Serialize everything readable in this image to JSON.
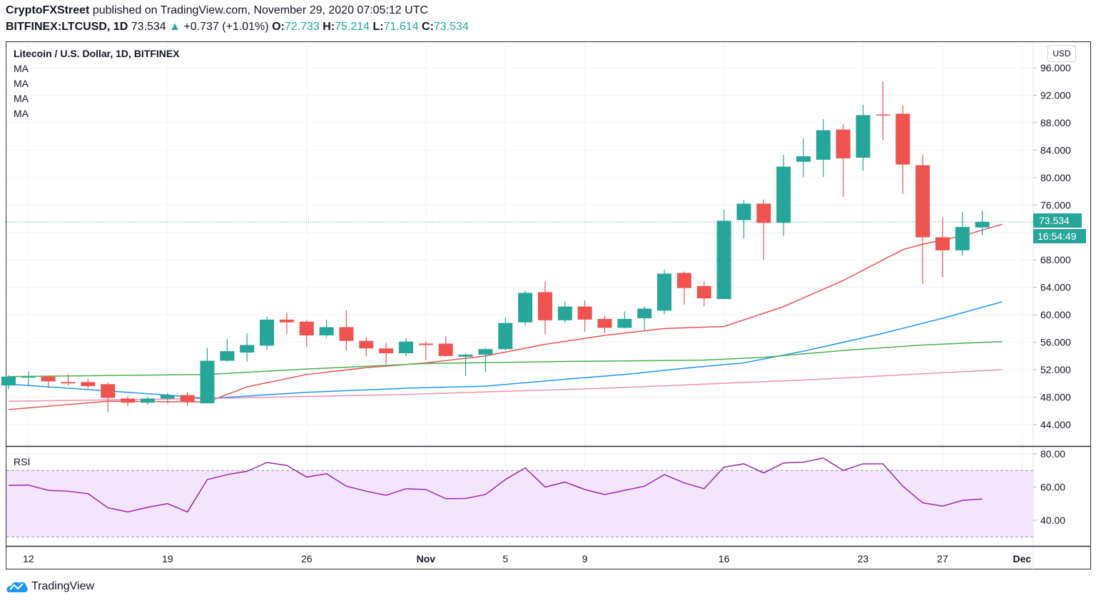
{
  "header": {
    "publisher": "CryptoFXStreet",
    "published_text": "published on TradingView.com, November 29, 2020 07:05:12 UTC",
    "symbol": "BITFINEX:LTCUSD, 1D",
    "last": "73.534",
    "change": "+0.737 (+1.01%)",
    "change_direction_icon": "triangle-up-icon",
    "open_label": "O:",
    "open": "72.733",
    "high_label": "H:",
    "high": "75.214",
    "low_label": "L:",
    "low": "71.614",
    "close_label": "C:",
    "close": "73.534"
  },
  "legend": {
    "title": "Litecoin / U.S. Dollar, 1D, BITFINEX",
    "indicators": [
      "MA",
      "MA",
      "MA",
      "MA"
    ]
  },
  "price_axis": {
    "currency_badge": "USD"
  },
  "last_price_tag": "73.534",
  "countdown_tag": "16:54:49",
  "rsi_label": "RSI",
  "footer": {
    "brand": "TradingView"
  },
  "colors": {
    "up": "#26a69a",
    "down": "#ef5350",
    "ma_fast": "#ef5350",
    "ma_mid": "#2196f3",
    "ma_slow": "#4caf50",
    "ma_long": "#f48fb1",
    "rsi_line": "#9c27b0",
    "rsi_band": "#f3e5fc"
  },
  "chart_data": [
    {
      "type": "candlestick",
      "title": "Litecoin / U.S. Dollar, 1D, BITFINEX",
      "ylabel": "USD",
      "ylim": [
        42,
        98
      ],
      "yticks": [
        44,
        48,
        52,
        56,
        60,
        64,
        68,
        72,
        76,
        80,
        84,
        88,
        92,
        96
      ],
      "ytick_labels": [
        "44.000",
        "48.000",
        "52.000",
        "56.000",
        "60.000",
        "64.000",
        "68.000",
        "72.000",
        "76.000",
        "80.000",
        "84.000",
        "88.000",
        "92.000",
        "96.000"
      ],
      "xtick_labels": [
        {
          "label": "12",
          "day": 1
        },
        {
          "label": "19",
          "day": 8
        },
        {
          "label": "26",
          "day": 15
        },
        {
          "label": "Nov",
          "day": 21
        },
        {
          "label": "5",
          "day": 25
        },
        {
          "label": "9",
          "day": 29
        },
        {
          "label": "16",
          "day": 36
        },
        {
          "label": "23",
          "day": 43
        },
        {
          "label": "27",
          "day": 47
        },
        {
          "label": "Dec",
          "day": 51
        }
      ],
      "candles": [
        {
          "date": "Oct 11",
          "o": 49.7,
          "h": 51.2,
          "l": 49.1,
          "c": 51.0
        },
        {
          "date": "Oct 12",
          "o": 50.9,
          "h": 51.8,
          "l": 49.6,
          "c": 51.0
        },
        {
          "date": "Oct 13",
          "o": 51.0,
          "h": 51.2,
          "l": 49.4,
          "c": 50.3
        },
        {
          "date": "Oct 14",
          "o": 50.2,
          "h": 51.3,
          "l": 49.7,
          "c": 50.0
        },
        {
          "date": "Oct 15",
          "o": 50.2,
          "h": 50.7,
          "l": 49.3,
          "c": 49.6
        },
        {
          "date": "Oct 16",
          "o": 49.9,
          "h": 50.1,
          "l": 45.8,
          "c": 47.9
        },
        {
          "date": "Oct 17",
          "o": 47.8,
          "h": 48.1,
          "l": 46.7,
          "c": 47.2
        },
        {
          "date": "Oct 18",
          "o": 47.2,
          "h": 48.0,
          "l": 46.9,
          "c": 47.8
        },
        {
          "date": "Oct 19",
          "o": 47.8,
          "h": 48.6,
          "l": 47.1,
          "c": 48.3
        },
        {
          "date": "Oct 20",
          "o": 48.3,
          "h": 48.7,
          "l": 46.7,
          "c": 47.3
        },
        {
          "date": "Oct 21",
          "o": 47.1,
          "h": 55.2,
          "l": 47.1,
          "c": 53.3
        },
        {
          "date": "Oct 22",
          "o": 53.3,
          "h": 56.5,
          "l": 53.2,
          "c": 54.7
        },
        {
          "date": "Oct 23",
          "o": 54.5,
          "h": 57.3,
          "l": 53.2,
          "c": 55.6
        },
        {
          "date": "Oct 24",
          "o": 55.5,
          "h": 59.7,
          "l": 54.9,
          "c": 59.3
        },
        {
          "date": "Oct 25",
          "o": 59.3,
          "h": 60.3,
          "l": 57.2,
          "c": 58.9
        },
        {
          "date": "Oct 26",
          "o": 59.0,
          "h": 59.2,
          "l": 55.3,
          "c": 57.0
        },
        {
          "date": "Oct 27",
          "o": 57.0,
          "h": 59.3,
          "l": 56.7,
          "c": 58.2
        },
        {
          "date": "Oct 28",
          "o": 58.2,
          "h": 60.7,
          "l": 54.8,
          "c": 56.2
        },
        {
          "date": "Oct 29",
          "o": 56.2,
          "h": 56.8,
          "l": 53.9,
          "c": 55.1
        },
        {
          "date": "Oct 30",
          "o": 55.1,
          "h": 55.9,
          "l": 52.8,
          "c": 54.4
        },
        {
          "date": "Oct 31",
          "o": 54.4,
          "h": 56.6,
          "l": 54.0,
          "c": 56.1
        },
        {
          "date": "Nov 1",
          "o": 55.8,
          "h": 56.1,
          "l": 53.4,
          "c": 55.6
        },
        {
          "date": "Nov 2",
          "o": 55.8,
          "h": 56.9,
          "l": 53.9,
          "c": 54.0
        },
        {
          "date": "Nov 3",
          "o": 53.9,
          "h": 54.4,
          "l": 51.1,
          "c": 54.2
        },
        {
          "date": "Nov 4",
          "o": 54.2,
          "h": 55.2,
          "l": 51.6,
          "c": 55.0
        },
        {
          "date": "Nov 5",
          "o": 55.0,
          "h": 59.6,
          "l": 54.8,
          "c": 58.8
        },
        {
          "date": "Nov 6",
          "o": 58.9,
          "h": 63.5,
          "l": 58.5,
          "c": 63.2
        },
        {
          "date": "Nov 7",
          "o": 63.3,
          "h": 64.8,
          "l": 57.2,
          "c": 59.2
        },
        {
          "date": "Nov 8",
          "o": 59.2,
          "h": 62.0,
          "l": 58.9,
          "c": 61.2
        },
        {
          "date": "Nov 9",
          "o": 61.2,
          "h": 62.1,
          "l": 57.5,
          "c": 59.3
        },
        {
          "date": "Nov 10",
          "o": 59.4,
          "h": 59.9,
          "l": 57.3,
          "c": 58.1
        },
        {
          "date": "Nov 11",
          "o": 58.1,
          "h": 60.5,
          "l": 58.0,
          "c": 59.4
        },
        {
          "date": "Nov 12",
          "o": 59.5,
          "h": 61.2,
          "l": 57.6,
          "c": 60.9
        },
        {
          "date": "Nov 13",
          "o": 60.6,
          "h": 66.6,
          "l": 60.1,
          "c": 66.0
        },
        {
          "date": "Nov 14",
          "o": 66.1,
          "h": 66.3,
          "l": 61.5,
          "c": 63.9
        },
        {
          "date": "Nov 15",
          "o": 64.2,
          "h": 64.9,
          "l": 61.3,
          "c": 62.4
        },
        {
          "date": "Nov 16",
          "o": 62.3,
          "h": 75.4,
          "l": 62.3,
          "c": 73.7
        },
        {
          "date": "Nov 17",
          "o": 73.8,
          "h": 76.7,
          "l": 71.1,
          "c": 76.2
        },
        {
          "date": "Nov 18",
          "o": 76.2,
          "h": 76.8,
          "l": 68.0,
          "c": 73.4
        },
        {
          "date": "Nov 19",
          "o": 73.4,
          "h": 83.3,
          "l": 71.5,
          "c": 81.6
        },
        {
          "date": "Nov 20",
          "o": 82.3,
          "h": 85.7,
          "l": 80.1,
          "c": 83.1
        },
        {
          "date": "Nov 21",
          "o": 82.6,
          "h": 88.5,
          "l": 80.1,
          "c": 86.9
        },
        {
          "date": "Nov 22",
          "o": 87.0,
          "h": 87.8,
          "l": 77.2,
          "c": 82.8
        },
        {
          "date": "Nov 23",
          "o": 82.9,
          "h": 90.6,
          "l": 81.0,
          "c": 89.1
        },
        {
          "date": "Nov 24",
          "o": 89.2,
          "h": 94.0,
          "l": 85.4,
          "c": 89.1
        },
        {
          "date": "Nov 25",
          "o": 89.3,
          "h": 90.5,
          "l": 77.6,
          "c": 81.9
        },
        {
          "date": "Nov 26",
          "o": 81.8,
          "h": 83.3,
          "l": 64.5,
          "c": 71.3
        },
        {
          "date": "Nov 27",
          "o": 71.3,
          "h": 74.2,
          "l": 65.5,
          "c": 69.4
        },
        {
          "date": "Nov 28",
          "o": 69.4,
          "h": 75.0,
          "l": 68.6,
          "c": 72.8
        },
        {
          "date": "Nov 29",
          "o": 72.733,
          "h": 75.214,
          "l": 71.614,
          "c": 73.534
        }
      ],
      "moving_averages": [
        {
          "name": "MA",
          "color": "#ef5350",
          "points": [
            [
              0,
              46.2
            ],
            [
              5,
              47.4
            ],
            [
              10,
              47.3
            ],
            [
              12,
              49.5
            ],
            [
              15,
              51.3
            ],
            [
              18,
              52.3
            ],
            [
              21,
              53.0
            ],
            [
              24,
              54.0
            ],
            [
              27,
              55.7
            ],
            [
              30,
              57.0
            ],
            [
              33,
              58.0
            ],
            [
              36,
              58.3
            ],
            [
              39,
              61.2
            ],
            [
              42,
              65.0
            ],
            [
              45,
              69.5
            ],
            [
              46,
              70.3
            ],
            [
              48,
              71.5
            ],
            [
              50,
              73.2
            ]
          ]
        },
        {
          "name": "MA",
          "color": "#2196f3",
          "points": [
            [
              0,
              49.9
            ],
            [
              5,
              48.9
            ],
            [
              8,
              48.3
            ],
            [
              10,
              47.8
            ],
            [
              15,
              48.7
            ],
            [
              20,
              49.3
            ],
            [
              24,
              49.6
            ],
            [
              28,
              50.6
            ],
            [
              31,
              51.3
            ],
            [
              34,
              52.2
            ],
            [
              37,
              53.0
            ],
            [
              40,
              54.7
            ],
            [
              44,
              57.3
            ],
            [
              47,
              59.5
            ],
            [
              50,
              61.9
            ]
          ]
        },
        {
          "name": "MA",
          "color": "#4caf50",
          "points": [
            [
              0,
              51.0
            ],
            [
              10,
              51.3
            ],
            [
              15,
              52.1
            ],
            [
              21,
              52.9
            ],
            [
              28,
              53.2
            ],
            [
              35,
              53.4
            ],
            [
              38,
              53.8
            ],
            [
              42,
              54.8
            ],
            [
              46,
              55.6
            ],
            [
              50,
              56.1
            ]
          ]
        },
        {
          "name": "MA",
          "color": "#f48fb1",
          "points": [
            [
              0,
              47.4
            ],
            [
              10,
              47.8
            ],
            [
              20,
              48.4
            ],
            [
              30,
              49.3
            ],
            [
              40,
              50.5
            ],
            [
              50,
              52.0
            ]
          ]
        }
      ]
    },
    {
      "type": "line",
      "title": "RSI",
      "ylim": [
        22,
        88
      ],
      "yticks": [
        40,
        60,
        80
      ],
      "ytick_labels": [
        "40.00",
        "60.00",
        "80.00"
      ],
      "bands": {
        "upper": 70,
        "lower": 30
      },
      "values": [
        61.0,
        61.2,
        58.0,
        57.5,
        56.0,
        47.5,
        45.0,
        47.8,
        50.0,
        45.0,
        64.5,
        67.5,
        69.5,
        74.8,
        73.0,
        66.0,
        68.0,
        60.5,
        57.5,
        55.0,
        59.0,
        58.5,
        53.0,
        53.1,
        55.5,
        64.5,
        71.5,
        60.0,
        63.0,
        58.5,
        55.5,
        58.0,
        60.5,
        67.5,
        62.5,
        59.0,
        72.0,
        74.0,
        68.5,
        74.5,
        75.0,
        77.5,
        70.0,
        74.0,
        74.0,
        60.5,
        50.5,
        48.5,
        52.0,
        52.8
      ]
    }
  ]
}
